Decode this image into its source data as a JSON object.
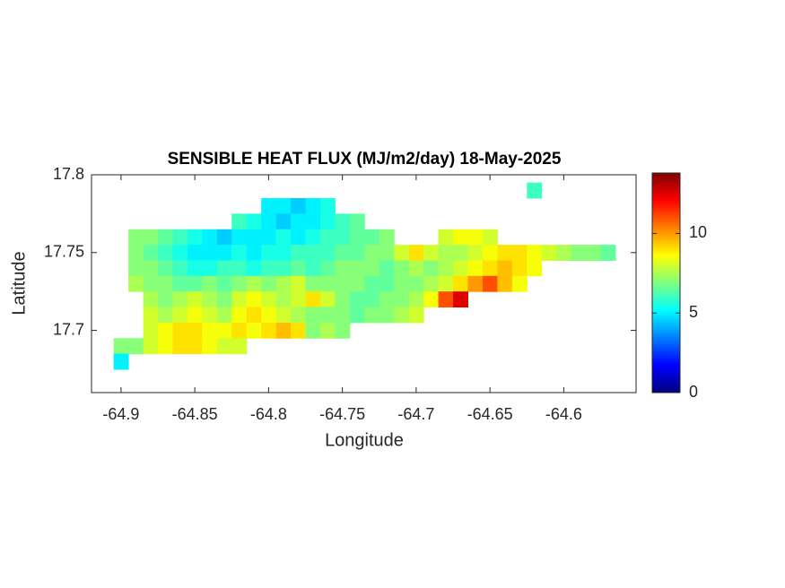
{
  "chart_data": {
    "type": "heatmap",
    "title": "SENSIBLE HEAT FLUX (MJ/m2/day) 18-May-2025",
    "x_label": "Longitude",
    "y_label": "Latitude",
    "colormap": "jet",
    "x": [
      -64.9,
      -64.89,
      -64.88,
      -64.87,
      -64.86,
      -64.85,
      -64.84,
      -64.83,
      -64.82,
      -64.81,
      -64.8,
      -64.79,
      -64.78,
      -64.77,
      -64.76,
      -64.75,
      -64.74,
      -64.73,
      -64.72,
      -64.71,
      -64.7,
      -64.69,
      -64.68,
      -64.67,
      -64.66,
      -64.65,
      -64.64,
      -64.63,
      -64.62,
      -64.61,
      -64.6,
      -64.59,
      -64.58,
      -64.57,
      -64.56
    ],
    "y": [
      17.79,
      17.78,
      17.77,
      17.76,
      17.75,
      17.74,
      17.73,
      17.72,
      17.71,
      17.7,
      17.69,
      17.68
    ],
    "values": [
      [
        null,
        null,
        null,
        null,
        null,
        null,
        null,
        null,
        null,
        null,
        null,
        null,
        null,
        null,
        null,
        null,
        null,
        null,
        null,
        null,
        null,
        null,
        null,
        null,
        null,
        null,
        null,
        null,
        6,
        null,
        null,
        null,
        null,
        null,
        null
      ],
      [
        null,
        null,
        null,
        null,
        null,
        null,
        null,
        null,
        null,
        null,
        5,
        5,
        4.5,
        5,
        5.5,
        null,
        null,
        null,
        null,
        null,
        null,
        null,
        null,
        null,
        null,
        null,
        null,
        null,
        null,
        null,
        null,
        null,
        null,
        null,
        null
      ],
      [
        null,
        null,
        null,
        null,
        null,
        null,
        null,
        null,
        6,
        5.5,
        5,
        4.5,
        5,
        5,
        5.5,
        6,
        6.5,
        null,
        null,
        null,
        null,
        null,
        null,
        null,
        null,
        null,
        null,
        null,
        null,
        null,
        null,
        null,
        null,
        null,
        null
      ],
      [
        null,
        7,
        7,
        6.5,
        6,
        5.5,
        5,
        4.5,
        5,
        5,
        5,
        5.5,
        5,
        5.5,
        6,
        6,
        6.5,
        6.5,
        7,
        null,
        null,
        null,
        8,
        8.5,
        8.5,
        8,
        null,
        null,
        null,
        null,
        null,
        null,
        null,
        null,
        null
      ],
      [
        null,
        7,
        6.5,
        6,
        5.5,
        5,
        5,
        5,
        5.5,
        5,
        5.5,
        5.5,
        6,
        6,
        6,
        6.5,
        6.5,
        7,
        7,
        8,
        9,
        8,
        7.5,
        7.5,
        8,
        8.5,
        9,
        9,
        8.5,
        8,
        7.5,
        7,
        7,
        6.5,
        null
      ],
      [
        null,
        7,
        7,
        6.5,
        6,
        5.5,
        5.5,
        6,
        6,
        5.5,
        6,
        6,
        6.5,
        6,
        6.5,
        7,
        7,
        7,
        6.5,
        7,
        7.5,
        7,
        7.5,
        8,
        8.5,
        9,
        9.5,
        9,
        8.5,
        null,
        null,
        null,
        null,
        null,
        null
      ],
      [
        null,
        7.5,
        7,
        7,
        6.5,
        6.5,
        7,
        6.5,
        7,
        7.5,
        7,
        7.5,
        8,
        7,
        7,
        7,
        7,
        6.5,
        6.5,
        7,
        7,
        7.5,
        8,
        9,
        10,
        11,
        9.5,
        8.5,
        null,
        null,
        null,
        null,
        null,
        null,
        null
      ],
      [
        null,
        null,
        7.5,
        7,
        7.5,
        8,
        7.5,
        7,
        8,
        8.5,
        8,
        7.5,
        8,
        9,
        8,
        7,
        6.5,
        6.5,
        7,
        7,
        7.5,
        8.5,
        11,
        12.5,
        null,
        null,
        null,
        null,
        null,
        null,
        null,
        null,
        null,
        null,
        null
      ],
      [
        null,
        null,
        8,
        7.5,
        8,
        8.5,
        8,
        7.5,
        8.5,
        9,
        8.5,
        8,
        7.5,
        7,
        7,
        7,
        6.5,
        7,
        7,
        7.5,
        8,
        null,
        null,
        null,
        null,
        null,
        null,
        null,
        null,
        null,
        null,
        null,
        null,
        null,
        null
      ],
      [
        null,
        null,
        8,
        8.5,
        9,
        9,
        8.5,
        8.5,
        9,
        8.5,
        9,
        9.5,
        9,
        7,
        7.5,
        7,
        null,
        null,
        null,
        null,
        null,
        null,
        null,
        null,
        null,
        null,
        null,
        null,
        null,
        null,
        null,
        null,
        null,
        null,
        null
      ],
      [
        7,
        7,
        8,
        8.5,
        9,
        9,
        8.5,
        8,
        8,
        null,
        null,
        null,
        null,
        null,
        null,
        null,
        null,
        null,
        null,
        null,
        null,
        null,
        null,
        null,
        null,
        null,
        null,
        null,
        null,
        null,
        null,
        null,
        null,
        null,
        null
      ],
      [
        5,
        null,
        null,
        null,
        null,
        null,
        null,
        null,
        null,
        null,
        null,
        null,
        null,
        null,
        null,
        null,
        null,
        null,
        null,
        null,
        null,
        null,
        null,
        null,
        null,
        null,
        null,
        null,
        null,
        null,
        null,
        null,
        null,
        null,
        null
      ]
    ],
    "xlim": [
      -64.92,
      -64.551
    ],
    "ylim": [
      17.66,
      17.8
    ],
    "xticks": [
      -64.9,
      -64.85,
      -64.8,
      -64.75,
      -64.7,
      -64.65,
      -64.6
    ],
    "yticks": [
      17.7,
      17.75,
      17.8
    ],
    "clim": [
      0,
      13.8
    ],
    "cticks": [
      0,
      5,
      10
    ]
  }
}
